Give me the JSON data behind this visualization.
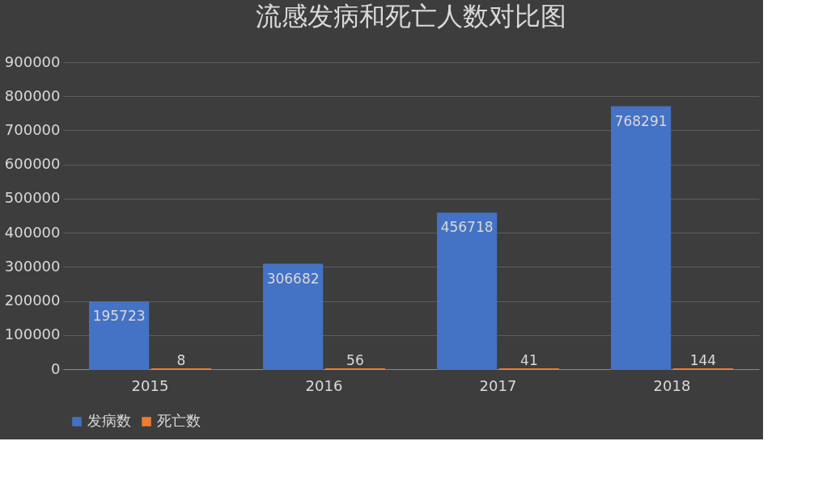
{
  "chart_data": {
    "type": "bar",
    "title": "流感发病和死亡人数对比图",
    "categories": [
      "2015",
      "2016",
      "2017",
      "2018"
    ],
    "series": [
      {
        "name": "发病数",
        "color": "#4472c4",
        "values": [
          195723,
          306682,
          456718,
          768291
        ]
      },
      {
        "name": "死亡数",
        "color": "#ed7d31",
        "values": [
          8,
          56,
          41,
          144
        ]
      }
    ],
    "ylim": [
      0,
      900000
    ],
    "yticks": [
      0,
      100000,
      200000,
      300000,
      400000,
      500000,
      600000,
      700000,
      800000,
      900000
    ],
    "grid": "y",
    "legend": "bottom",
    "data_labels": true
  }
}
